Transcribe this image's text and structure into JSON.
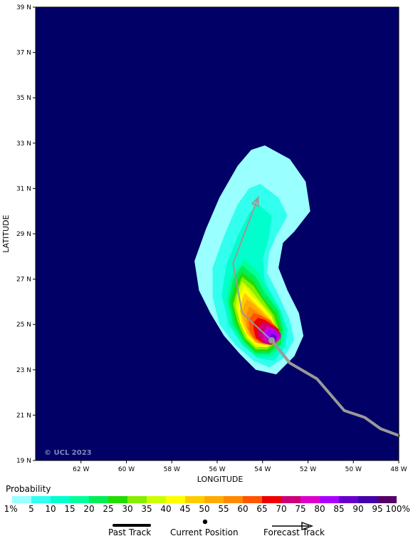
{
  "map": {
    "lat_labels": [
      "39 N",
      "37 N",
      "35 N",
      "33 N",
      "31 N",
      "29 N",
      "27 N",
      "25 N",
      "23 N",
      "21 N",
      "19 N"
    ],
    "lon_labels": [
      "62 W",
      "60 W",
      "58 W",
      "56 W",
      "54 W",
      "52 W",
      "50 W",
      "48 W"
    ],
    "lat_range": [
      19,
      39
    ],
    "lon_range": [
      -64,
      -48
    ],
    "xlabel": "LONGITUDE",
    "ylabel": "LATITUDE",
    "copyright": "© UCL 2023",
    "background_color": "#000066"
  },
  "track": {
    "past": [
      [
        -48.0,
        20.1
      ],
      [
        -48.8,
        20.4
      ],
      [
        -49.5,
        20.9
      ],
      [
        -50.4,
        21.2
      ],
      [
        -51.6,
        22.6
      ],
      [
        -52.8,
        23.3
      ],
      [
        -53.6,
        24.3
      ]
    ],
    "current": [
      -53.6,
      24.3
    ],
    "forecast": [
      [
        -53.6,
        24.3
      ],
      [
        -54.9,
        25.5
      ],
      [
        -55.3,
        27.7
      ],
      [
        -54.2,
        30.6
      ]
    ],
    "color": "#999999"
  },
  "probability_field": [
    {
      "level": 1,
      "color": "#99ffff",
      "shape": [
        [
          -53.9,
          32.9
        ],
        [
          -52.8,
          32.3
        ],
        [
          -52.1,
          31.3
        ],
        [
          -51.9,
          30.0
        ],
        [
          -52.6,
          29.1
        ],
        [
          -53.1,
          28.6
        ],
        [
          -53.3,
          27.5
        ],
        [
          -52.9,
          26.5
        ],
        [
          -52.4,
          25.5
        ],
        [
          -52.2,
          24.5
        ],
        [
          -52.6,
          23.6
        ],
        [
          -53.4,
          22.8
        ],
        [
          -54.3,
          23.0
        ],
        [
          -55.0,
          23.7
        ],
        [
          -55.7,
          24.5
        ],
        [
          -56.3,
          25.5
        ],
        [
          -56.8,
          26.5
        ],
        [
          -57.0,
          27.8
        ],
        [
          -56.5,
          29.2
        ],
        [
          -55.9,
          30.6
        ],
        [
          -55.1,
          32.0
        ],
        [
          -54.5,
          32.7
        ]
      ]
    },
    {
      "level": 5,
      "color": "#33ffee",
      "shape": [
        [
          -54.1,
          31.2
        ],
        [
          -53.3,
          30.6
        ],
        [
          -52.9,
          29.8
        ],
        [
          -53.4,
          28.9
        ],
        [
          -53.7,
          28.2
        ],
        [
          -53.8,
          27.3
        ],
        [
          -53.3,
          26.3
        ],
        [
          -52.8,
          25.2
        ],
        [
          -52.6,
          24.3
        ],
        [
          -53.1,
          23.5
        ],
        [
          -53.7,
          23.1
        ],
        [
          -54.4,
          23.4
        ],
        [
          -55.2,
          24.1
        ],
        [
          -55.9,
          25.0
        ],
        [
          -56.2,
          26.2
        ],
        [
          -56.2,
          27.5
        ],
        [
          -55.7,
          28.9
        ],
        [
          -55.1,
          30.3
        ],
        [
          -54.6,
          31.0
        ]
      ]
    },
    {
      "level": 10,
      "color": "#00ffcc",
      "shape": [
        [
          -54.2,
          30.3
        ],
        [
          -53.6,
          29.8
        ],
        [
          -53.7,
          28.9
        ],
        [
          -54.0,
          27.9
        ],
        [
          -53.9,
          26.9
        ],
        [
          -53.3,
          25.8
        ],
        [
          -52.9,
          24.8
        ],
        [
          -53.0,
          24.0
        ],
        [
          -53.5,
          23.4
        ],
        [
          -54.2,
          23.5
        ],
        [
          -54.9,
          24.1
        ],
        [
          -55.5,
          25.0
        ],
        [
          -55.8,
          26.3
        ],
        [
          -55.6,
          27.6
        ],
        [
          -55.1,
          28.9
        ],
        [
          -54.6,
          29.9
        ]
      ]
    },
    {
      "level": 15,
      "color": "#00ff99",
      "shape": [
        [
          -54.8,
          27.9
        ],
        [
          -54.2,
          27.3
        ],
        [
          -53.8,
          26.5
        ],
        [
          -53.2,
          25.6
        ],
        [
          -53.0,
          24.8
        ],
        [
          -53.1,
          24.1
        ],
        [
          -53.6,
          23.6
        ],
        [
          -54.3,
          23.6
        ],
        [
          -54.9,
          24.1
        ],
        [
          -55.4,
          25.0
        ],
        [
          -55.6,
          26.1
        ],
        [
          -55.4,
          27.1
        ]
      ]
    },
    {
      "level": 20,
      "color": "#00ee55",
      "shape": [
        [
          -54.9,
          27.6
        ],
        [
          -54.3,
          27.1
        ],
        [
          -53.9,
          26.4
        ],
        [
          -53.3,
          25.6
        ],
        [
          -53.1,
          24.8
        ],
        [
          -53.2,
          24.1
        ],
        [
          -53.7,
          23.7
        ],
        [
          -54.3,
          23.7
        ],
        [
          -54.8,
          24.2
        ],
        [
          -55.3,
          25.0
        ],
        [
          -55.5,
          26.0
        ],
        [
          -55.3,
          27.0
        ]
      ]
    },
    {
      "level": 25,
      "color": "#22dd00",
      "shape": [
        [
          -54.9,
          27.3
        ],
        [
          -54.4,
          26.9
        ],
        [
          -54.0,
          26.2
        ],
        [
          -53.4,
          25.5
        ],
        [
          -53.2,
          24.8
        ],
        [
          -53.3,
          24.2
        ],
        [
          -53.7,
          23.8
        ],
        [
          -54.3,
          23.8
        ],
        [
          -54.8,
          24.3
        ],
        [
          -55.2,
          25.1
        ],
        [
          -55.4,
          26.0
        ],
        [
          -55.2,
          26.8
        ]
      ]
    },
    {
      "level": 30,
      "color": "#88ee00",
      "shape": [
        [
          -54.9,
          27.1
        ],
        [
          -54.4,
          26.7
        ],
        [
          -54.0,
          26.1
        ],
        [
          -53.5,
          25.4
        ],
        [
          -53.3,
          24.8
        ],
        [
          -53.4,
          24.2
        ],
        [
          -53.8,
          23.9
        ],
        [
          -54.3,
          23.9
        ],
        [
          -54.8,
          24.4
        ],
        [
          -55.1,
          25.1
        ],
        [
          -55.3,
          25.9
        ],
        [
          -55.1,
          26.6
        ]
      ]
    },
    {
      "level": 35,
      "color": "#ccff00",
      "shape": [
        [
          -54.9,
          26.9
        ],
        [
          -54.5,
          26.5
        ],
        [
          -54.1,
          26.0
        ],
        [
          -53.6,
          25.4
        ],
        [
          -53.4,
          24.8
        ],
        [
          -53.5,
          24.3
        ],
        [
          -53.8,
          24.0
        ],
        [
          -54.3,
          24.0
        ],
        [
          -54.7,
          24.4
        ],
        [
          -55.0,
          25.1
        ],
        [
          -55.2,
          25.8
        ],
        [
          -55.1,
          26.4
        ]
      ]
    },
    {
      "level": 40,
      "color": "#ffff00",
      "shape": [
        [
          -54.8,
          26.7
        ],
        [
          -54.5,
          26.3
        ],
        [
          -54.1,
          25.9
        ],
        [
          -53.6,
          25.3
        ],
        [
          -53.4,
          24.8
        ],
        [
          -53.5,
          24.3
        ],
        [
          -53.8,
          24.0
        ],
        [
          -54.3,
          24.1
        ],
        [
          -54.7,
          24.5
        ],
        [
          -55.0,
          25.1
        ],
        [
          -55.1,
          25.7
        ],
        [
          -55.0,
          26.3
        ]
      ]
    },
    {
      "level": 45,
      "color": "#ffcc00",
      "shape": [
        [
          -54.8,
          26.4
        ],
        [
          -54.5,
          26.1
        ],
        [
          -54.1,
          25.7
        ],
        [
          -53.6,
          25.2
        ],
        [
          -53.4,
          24.7
        ],
        [
          -53.5,
          24.3
        ],
        [
          -53.9,
          24.1
        ],
        [
          -54.3,
          24.2
        ],
        [
          -54.7,
          24.6
        ],
        [
          -54.9,
          25.1
        ],
        [
          -55.0,
          25.6
        ],
        [
          -54.9,
          26.1
        ]
      ]
    },
    {
      "level": 50,
      "color": "#ffaa00",
      "shape": [
        [
          -54.7,
          26.1
        ],
        [
          -54.4,
          25.9
        ],
        [
          -54.0,
          25.5
        ],
        [
          -53.6,
          25.1
        ],
        [
          -53.4,
          24.7
        ],
        [
          -53.5,
          24.3
        ],
        [
          -53.9,
          24.1
        ],
        [
          -54.3,
          24.2
        ],
        [
          -54.6,
          24.6
        ],
        [
          -54.8,
          25.1
        ],
        [
          -54.9,
          25.5
        ],
        [
          -54.8,
          25.9
        ]
      ]
    },
    {
      "level": 55,
      "color": "#ff8800",
      "shape": [
        [
          -54.6,
          25.8
        ],
        [
          -54.3,
          25.6
        ],
        [
          -53.9,
          25.3
        ],
        [
          -53.5,
          25.0
        ],
        [
          -53.3,
          24.6
        ],
        [
          -53.4,
          24.3
        ],
        [
          -53.8,
          24.1
        ],
        [
          -54.2,
          24.2
        ],
        [
          -54.5,
          24.5
        ],
        [
          -54.7,
          24.9
        ],
        [
          -54.7,
          25.4
        ]
      ]
    },
    {
      "level": 60,
      "color": "#ff5500",
      "shape": [
        [
          -54.4,
          25.5
        ],
        [
          -54.1,
          25.4
        ],
        [
          -53.7,
          25.2
        ],
        [
          -53.4,
          24.9
        ],
        [
          -53.2,
          24.6
        ],
        [
          -53.3,
          24.3
        ],
        [
          -53.7,
          24.1
        ],
        [
          -54.1,
          24.2
        ],
        [
          -54.4,
          24.4
        ],
        [
          -54.6,
          24.8
        ],
        [
          -54.6,
          25.2
        ]
      ]
    },
    {
      "level": 65,
      "color": "#ee0000",
      "shape": [
        [
          -54.2,
          25.3
        ],
        [
          -53.9,
          25.2
        ],
        [
          -53.6,
          25.0
        ],
        [
          -53.3,
          24.8
        ],
        [
          -53.2,
          24.5
        ],
        [
          -53.3,
          24.3
        ],
        [
          -53.6,
          24.1
        ],
        [
          -54.0,
          24.2
        ],
        [
          -54.3,
          24.4
        ],
        [
          -54.4,
          24.8
        ],
        [
          -54.4,
          25.1
        ]
      ]
    },
    {
      "level": 70,
      "color": "#cc0077",
      "shape": [
        [
          -54.0,
          25.1
        ],
        [
          -53.7,
          25.0
        ],
        [
          -53.4,
          24.8
        ],
        [
          -53.2,
          24.6
        ],
        [
          -53.2,
          24.4
        ],
        [
          -53.4,
          24.2
        ],
        [
          -53.7,
          24.1
        ],
        [
          -54.0,
          24.2
        ],
        [
          -54.2,
          24.5
        ],
        [
          -54.2,
          24.8
        ]
      ]
    },
    {
      "level": 75,
      "color": "#dd00cc",
      "shape": [
        [
          -53.8,
          24.9
        ],
        [
          -53.5,
          24.8
        ],
        [
          -53.3,
          24.6
        ],
        [
          -53.2,
          24.4
        ],
        [
          -53.4,
          24.2
        ],
        [
          -53.7,
          24.2
        ],
        [
          -53.9,
          24.3
        ],
        [
          -54.0,
          24.6
        ]
      ]
    },
    {
      "level": 80,
      "color": "#aa00ff",
      "shape": [
        [
          -53.7,
          24.8
        ],
        [
          -53.4,
          24.7
        ],
        [
          -53.3,
          24.5
        ],
        [
          -53.4,
          24.3
        ],
        [
          -53.6,
          24.2
        ],
        [
          -53.8,
          24.3
        ],
        [
          -53.9,
          24.6
        ]
      ]
    },
    {
      "level": 85,
      "color": "#6600cc",
      "shape": [
        [
          -53.6,
          24.6
        ],
        [
          -53.4,
          24.5
        ],
        [
          -53.4,
          24.3
        ],
        [
          -53.6,
          24.3
        ],
        [
          -53.7,
          24.4
        ]
      ]
    }
  ],
  "legend": {
    "title": "Probability",
    "labels": [
      "1%",
      "5",
      "10",
      "15",
      "20",
      "25",
      "30",
      "35",
      "40",
      "45",
      "50",
      "55",
      "60",
      "65",
      "70",
      "75",
      "80",
      "85",
      "90",
      "95",
      "100%"
    ],
    "colors": [
      "#99ffff",
      "#33ffee",
      "#00ffcc",
      "#00ff99",
      "#00ee55",
      "#22dd00",
      "#88ee00",
      "#ccff00",
      "#ffff00",
      "#ffcc00",
      "#ffaa00",
      "#ff8800",
      "#ff5500",
      "#ee0000",
      "#cc0077",
      "#dd00cc",
      "#aa00ff",
      "#6600cc",
      "#4400aa",
      "#550066"
    ],
    "past_track": "Past Track",
    "current_position": "Current Position",
    "forecast_track": "Forecast Track"
  }
}
